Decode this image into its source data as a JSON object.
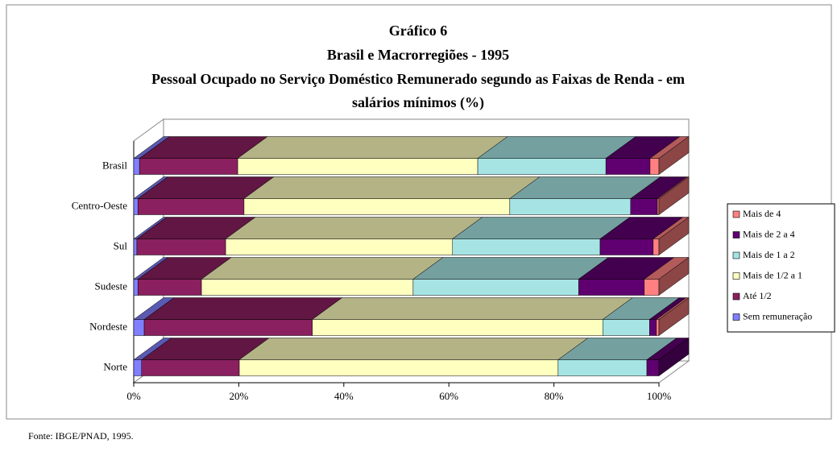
{
  "chart_data": {
    "type": "bar",
    "orientation": "horizontal",
    "stacked": "percent",
    "title": [
      "Gráfico 6",
      "Brasil e Macrorregiões - 1995",
      "Pessoal Ocupado no Serviço Doméstico Remunerado segundo as Faixas de Renda - em",
      "salários mínimos (%)"
    ],
    "categories": [
      "Brasil",
      "Centro-Oeste",
      "Sul",
      "Sudeste",
      "Nordeste",
      "Norte"
    ],
    "series": [
      {
        "name": "Sem remuneração",
        "color": "#8080ff",
        "values": [
          1.1,
          0.8,
          0.6,
          0.8,
          2.0,
          1.5
        ]
      },
      {
        "name": "Até 1/2",
        "color": "#8b2060",
        "values": [
          18.7,
          20.2,
          16.9,
          12.1,
          32.0,
          18.6
        ]
      },
      {
        "name": "Mais de 1/2 a 1",
        "color": "#ffffc0",
        "values": [
          45.7,
          50.6,
          43.2,
          40.3,
          55.3,
          60.7
        ]
      },
      {
        "name": "Mais de 1 a 2",
        "color": "#a6e4e4",
        "values": [
          24.4,
          23.0,
          28.1,
          31.5,
          8.9,
          16.9
        ]
      },
      {
        "name": "Mais de 2 a 4",
        "color": "#600070",
        "values": [
          8.4,
          5.1,
          10.1,
          12.5,
          1.3,
          2.3
        ]
      },
      {
        "name": "Mais de 4",
        "color": "#ff8080",
        "values": [
          1.7,
          0.3,
          1.1,
          2.8,
          0.5,
          0
        ]
      }
    ],
    "xlim": [
      0,
      100
    ],
    "xticks": [
      {
        "value": 0,
        "label": "0%"
      },
      {
        "value": 20,
        "label": "20%"
      },
      {
        "value": 40,
        "label": "40%"
      },
      {
        "value": 60,
        "label": "60%"
      },
      {
        "value": 80,
        "label": "80%"
      },
      {
        "value": 100,
        "label": "100%"
      }
    ],
    "legend": "right",
    "source": "Fonte: IBGE/PNAD, 1995."
  }
}
